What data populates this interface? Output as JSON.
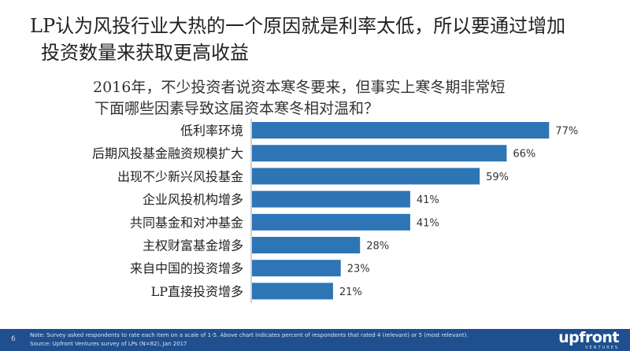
{
  "headline": {
    "line1": "LP认为风投行业大热的一个原因就是利率太低，所以要通过增加",
    "line2": "投资数量来获取更高收益"
  },
  "question": {
    "line1": "2016年，不少投资者说资本寒冬要来，但事实上寒冬期非常短",
    "line2": "下面哪些因素导致这届资本寒冬相对温和？"
  },
  "chart_data": {
    "type": "bar",
    "orientation": "horizontal",
    "categories": [
      "低利率环境",
      "后期风投基金融资规模扩大",
      "出现不少新兴风投基金",
      "企业风投机构增多",
      "共同基金和对冲基金",
      "主权财富基金增多",
      "来自中国的投资增多",
      "LP直接投资增多"
    ],
    "values": [
      77,
      66,
      59,
      41,
      41,
      28,
      23,
      21
    ],
    "value_labels": [
      "77%",
      "66%",
      "59%",
      "41%",
      "41%",
      "28%",
      "23%",
      "21%"
    ],
    "xlim": [
      0,
      100
    ],
    "bar_color": "#2e75b6",
    "grid": false
  },
  "footer": {
    "page_number": "6",
    "note_line1": "Note: Survey asked respondents to rate each item on a scale of 1-5. Above chart indicates percent of respondents that rated 4 (relevant) or 5 (most relevant).",
    "note_line2": "Source: Upfront Ventures survey of LPs (N=82), Jan 2017",
    "logo_main": "upfront",
    "logo_sub": "VENTURES",
    "background_color": "#1f4f8f"
  }
}
